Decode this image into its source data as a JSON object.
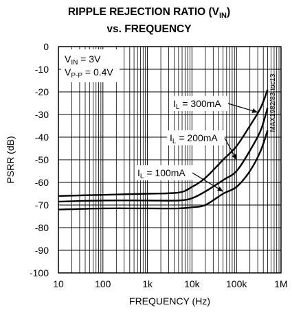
{
  "chart_data": {
    "type": "line",
    "title_line1": "RIPPLE REJECTION RATIO (V",
    "title_sub": "IN",
    "title_close": ")",
    "title_line2": "vs. FREQUENCY",
    "xlabel": "FREQUENCY (Hz)",
    "ylabel": "PSRR (dB)",
    "x_scale": "log",
    "xlim": [
      10,
      1000000
    ],
    "ylim": [
      -100,
      0
    ],
    "grid": true,
    "x_ticks": [
      10,
      100,
      1000,
      10000,
      100000,
      1000000
    ],
    "x_tick_labels": [
      "10",
      "100",
      "1k",
      "10k",
      "100k",
      "1M"
    ],
    "y_ticks": [
      0,
      -10,
      -20,
      -30,
      -40,
      -50,
      -60,
      -70,
      -80,
      -90,
      -100
    ],
    "y_tick_labels": [
      "0",
      "-10",
      "-20",
      "-30",
      "-40",
      "-50",
      "-60",
      "-70",
      "-80",
      "-90",
      "-100"
    ],
    "conditions": [
      {
        "main": "V",
        "sub": "IN",
        "rest": " = 3V"
      },
      {
        "main": "V",
        "sub": "P-P",
        "rest": " = 0.4V"
      }
    ],
    "side_code": "MAX1982/83 toc13",
    "series": [
      {
        "name": "300mA",
        "label_main": "I",
        "label_sub": "L",
        "label_rest": " = 300mA",
        "points": [
          [
            10,
            -66
          ],
          [
            100,
            -65.5
          ],
          [
            1000,
            -65
          ],
          [
            5000,
            -64.5
          ],
          [
            10000,
            -62
          ],
          [
            20000,
            -58
          ],
          [
            50000,
            -50
          ],
          [
            100000,
            -44
          ],
          [
            200000,
            -35
          ],
          [
            350000,
            -27
          ],
          [
            500000,
            -19
          ]
        ]
      },
      {
        "name": "200mA",
        "label_main": "I",
        "label_sub": "L",
        "label_rest": " = 200mA",
        "points": [
          [
            10,
            -68.5
          ],
          [
            100,
            -68
          ],
          [
            1000,
            -68
          ],
          [
            5000,
            -68
          ],
          [
            10000,
            -67
          ],
          [
            20000,
            -64
          ],
          [
            50000,
            -59
          ],
          [
            100000,
            -55
          ],
          [
            200000,
            -46
          ],
          [
            350000,
            -37
          ],
          [
            500000,
            -27
          ]
        ]
      },
      {
        "name": "100mA",
        "label_main": "I",
        "label_sub": "L",
        "label_rest": " = 100mA",
        "points": [
          [
            10,
            -72
          ],
          [
            100,
            -71.5
          ],
          [
            1000,
            -71.5
          ],
          [
            5000,
            -71.5
          ],
          [
            10000,
            -71
          ],
          [
            20000,
            -70
          ],
          [
            50000,
            -65
          ],
          [
            100000,
            -62
          ],
          [
            200000,
            -55
          ],
          [
            350000,
            -46
          ],
          [
            500000,
            -37
          ]
        ]
      }
    ],
    "annotations": [
      {
        "series": 0,
        "arrow_to": [
          300000,
          -29
        ]
      },
      {
        "series": 1,
        "arrow_to": [
          100000,
          -50
        ]
      },
      {
        "series": 2,
        "arrow_to": [
          50000,
          -64
        ]
      }
    ]
  }
}
